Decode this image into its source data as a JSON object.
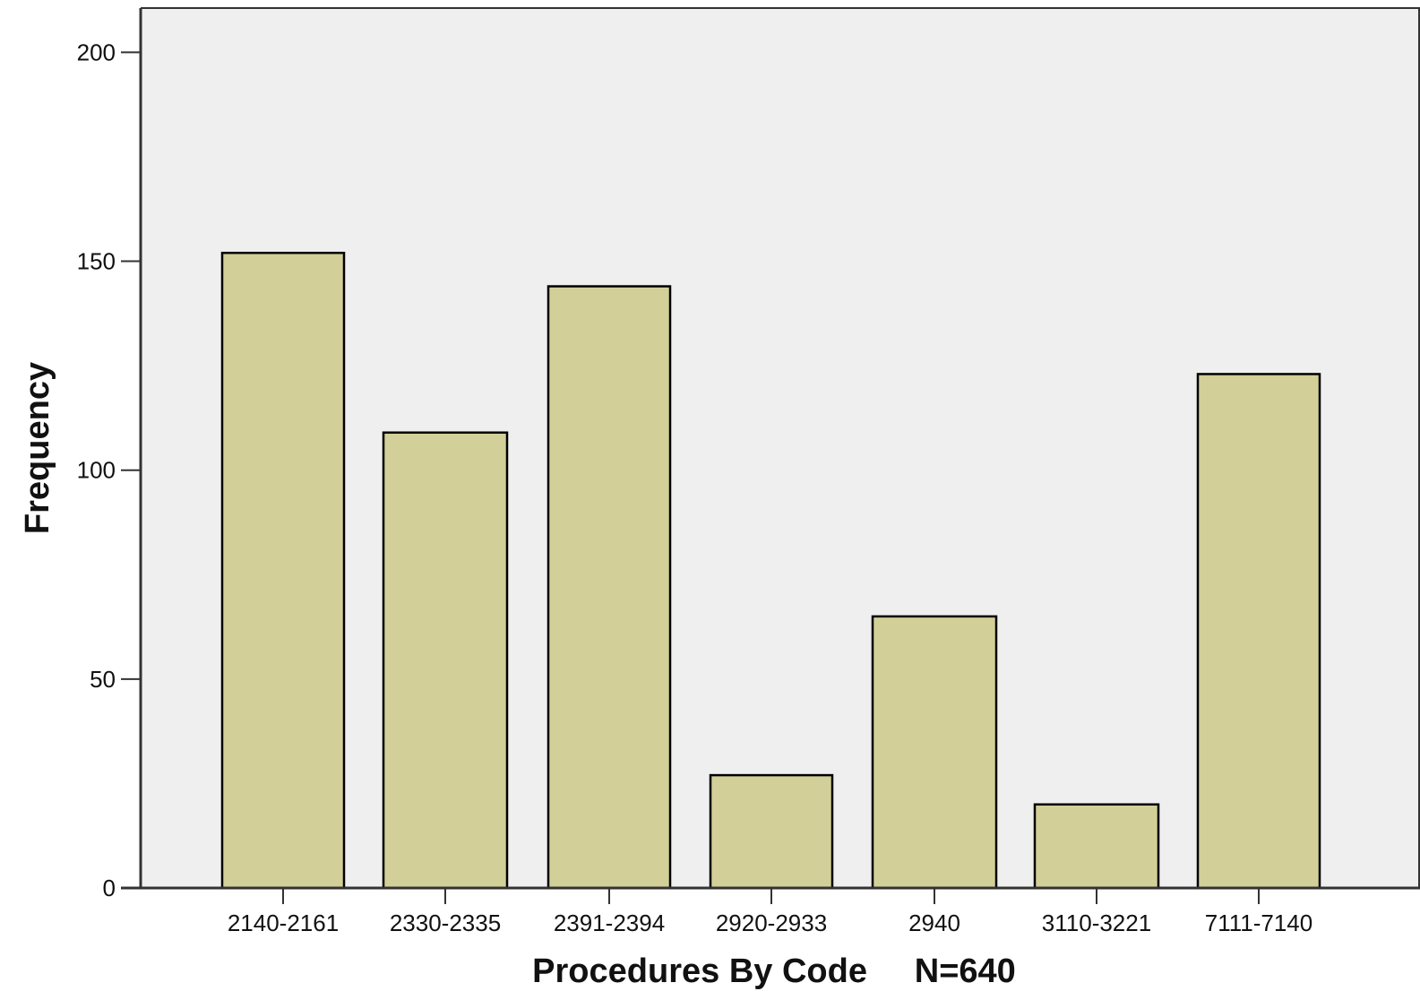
{
  "chart_data": {
    "type": "bar",
    "categories": [
      "2140-2161",
      "2330-2335",
      "2391-2394",
      "2920-2933",
      "2940",
      "3110-3221",
      "7111-7140"
    ],
    "values": [
      152,
      109,
      144,
      27,
      65,
      20,
      123
    ],
    "ylim": [
      0,
      210
    ],
    "yticks": [
      0,
      50,
      100,
      150,
      200
    ],
    "ytick_labels": [
      "0",
      "50",
      "100",
      "150",
      "200"
    ],
    "xlabel": "Procedures By Code",
    "xlabel_note": "N=640",
    "ylabel": "Frequency",
    "grid": false,
    "legend": "none",
    "colors": {
      "bar_fill": "#d2cf98",
      "bar_stroke": "#000000",
      "plot_background": "#efefef",
      "axis": "#333333"
    }
  }
}
